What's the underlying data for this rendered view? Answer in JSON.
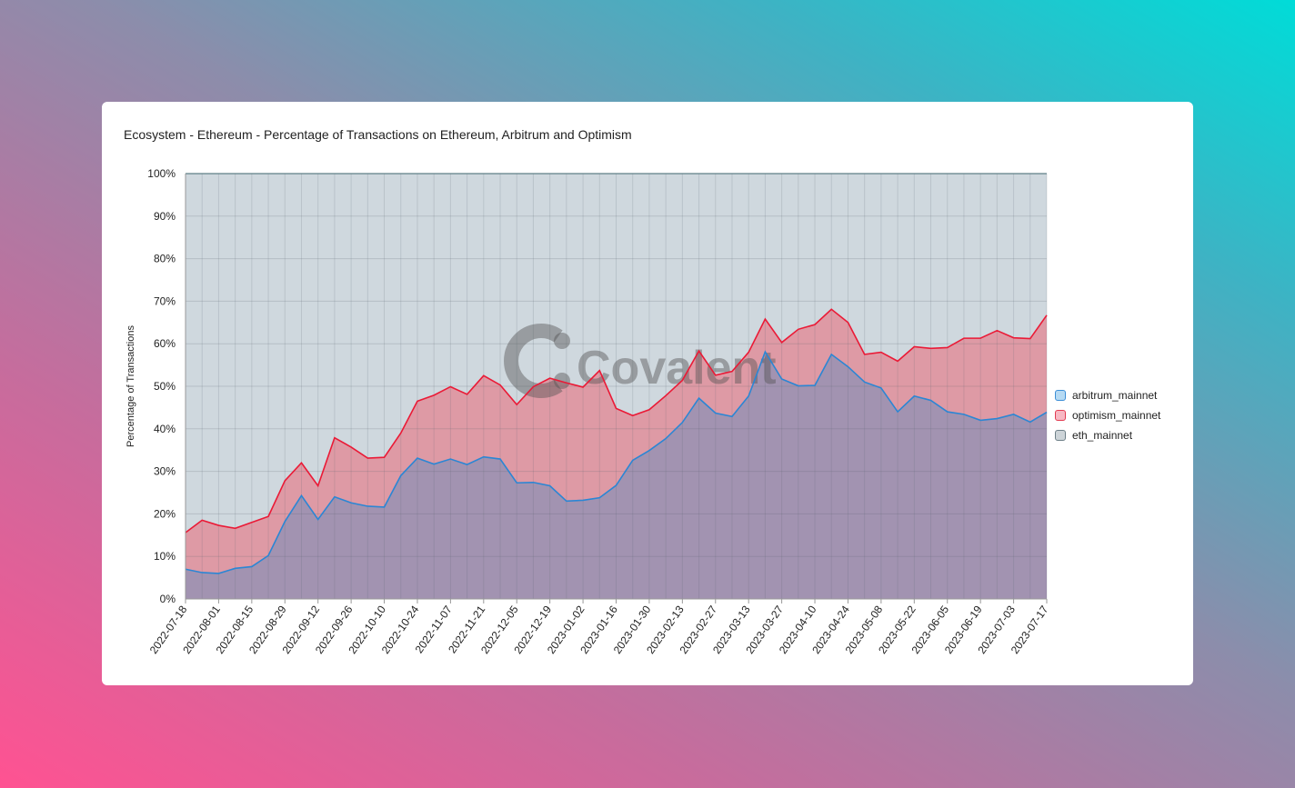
{
  "title": "Ecosystem - Ethereum - Percentage of Transactions on Ethereum, Arbitrum and Optimism",
  "watermark": "Covalent",
  "colors": {
    "arbitrum_line": "#2b86d4",
    "arbitrum_fill": "#a293b1",
    "optimism_line": "#ea1a36",
    "optimism_fill": "#de9aa5",
    "eth_fill": "#cfd8de",
    "eth_line": "#5f7f86"
  },
  "legend": [
    {
      "name": "arbitrum_mainnet",
      "color": "#b6daf3",
      "border": "#3d8fd6"
    },
    {
      "name": "optimism_mainnet",
      "color": "#f7b8c3",
      "border": "#e23b52"
    },
    {
      "name": "eth_mainnet",
      "color": "#cdd4d8",
      "border": "#6e8088"
    }
  ],
  "chart_data": {
    "type": "area",
    "stacked": true,
    "title": "Ecosystem - Ethereum - Percentage of Transactions on Ethereum, Arbitrum and Optimism",
    "ylabel": "Percentage of Transactions",
    "xlabel": "",
    "ylim": [
      0,
      100
    ],
    "y_ticks": [
      "0%",
      "10%",
      "20%",
      "30%",
      "40%",
      "50%",
      "60%",
      "70%",
      "80%",
      "90%",
      "100%"
    ],
    "x_tick_labels": [
      "2022-07-18",
      "2022-08-01",
      "2022-08-15",
      "2022-08-29",
      "2022-09-12",
      "2022-09-26",
      "2022-10-10",
      "2022-10-24",
      "2022-11-07",
      "2022-11-21",
      "2022-12-05",
      "2022-12-19",
      "2023-01-02",
      "2023-01-16",
      "2023-01-30",
      "2023-02-13",
      "2023-02-27",
      "2023-03-13",
      "2023-03-27",
      "2023-04-10",
      "2023-04-24",
      "2023-05-08",
      "2023-05-22",
      "2023-06-05",
      "2023-06-19",
      "2023-07-03",
      "2023-07-17"
    ],
    "x": [
      "2022-07-18",
      "2022-07-25",
      "2022-08-01",
      "2022-08-08",
      "2022-08-15",
      "2022-08-22",
      "2022-08-29",
      "2022-09-05",
      "2022-09-12",
      "2022-09-19",
      "2022-09-26",
      "2022-10-03",
      "2022-10-10",
      "2022-10-17",
      "2022-10-24",
      "2022-10-31",
      "2022-11-07",
      "2022-11-14",
      "2022-11-21",
      "2022-11-28",
      "2022-12-05",
      "2022-12-12",
      "2022-12-19",
      "2022-12-26",
      "2023-01-02",
      "2023-01-09",
      "2023-01-16",
      "2023-01-23",
      "2023-01-30",
      "2023-02-06",
      "2023-02-13",
      "2023-02-20",
      "2023-02-27",
      "2023-03-06",
      "2023-03-13",
      "2023-03-20",
      "2023-03-27",
      "2023-04-03",
      "2023-04-10",
      "2023-04-17",
      "2023-04-24",
      "2023-05-01",
      "2023-05-08",
      "2023-05-15",
      "2023-05-22",
      "2023-05-29",
      "2023-06-05",
      "2023-06-12",
      "2023-06-19",
      "2023-06-26",
      "2023-07-03",
      "2023-07-10",
      "2023-07-17"
    ],
    "series": [
      {
        "name": "arbitrum_mainnet",
        "values": [
          7.0,
          6.2,
          6.0,
          7.2,
          7.6,
          10.2,
          18.2,
          24.3,
          18.7,
          24.0,
          22.6,
          21.8,
          21.6,
          29.0,
          33.1,
          31.7,
          32.9,
          31.6,
          33.4,
          32.9,
          27.3,
          27.4,
          26.6,
          23.0,
          23.2,
          23.8,
          26.7,
          32.6,
          34.9,
          37.7,
          41.5,
          47.2,
          43.7,
          42.9,
          47.7,
          58.1,
          51.7,
          50.1,
          50.2,
          57.5,
          54.6,
          51.0,
          49.6,
          44.0,
          47.7,
          46.7,
          44.0,
          43.4,
          42.0,
          42.4,
          43.4,
          41.6,
          43.9
        ]
      },
      {
        "name": "optimism_mainnet",
        "values": [
          8.6,
          12.3,
          11.3,
          9.4,
          10.4,
          9.2,
          9.6,
          7.7,
          7.9,
          13.9,
          13.1,
          11.3,
          11.7,
          10.0,
          13.4,
          16.2,
          17.0,
          16.5,
          19.1,
          17.4,
          18.4,
          22.5,
          25.3,
          27.8,
          26.6,
          29.9,
          18.1,
          10.5,
          9.6,
          10.1,
          9.9,
          11.1,
          8.9,
          10.6,
          10.3,
          7.7,
          8.6,
          13.3,
          14.3,
          10.6,
          10.4,
          6.5,
          8.4,
          11.9,
          11.6,
          12.2,
          15.1,
          17.9,
          19.3,
          20.7,
          18.0,
          19.6,
          22.8
        ]
      },
      {
        "name": "eth_mainnet",
        "values": [
          84.4,
          81.5,
          82.7,
          83.4,
          82.0,
          80.6,
          72.2,
          68.0,
          73.4,
          62.1,
          64.3,
          66.9,
          66.7,
          61.0,
          53.5,
          52.1,
          50.1,
          51.9,
          47.5,
          49.7,
          54.3,
          50.1,
          48.1,
          49.2,
          50.2,
          46.3,
          55.2,
          56.9,
          55.5,
          52.2,
          48.6,
          41.7,
          47.4,
          46.5,
          42.0,
          34.2,
          39.7,
          36.6,
          35.5,
          31.9,
          35.0,
          42.5,
          42.0,
          44.1,
          40.7,
          41.1,
          40.9,
          38.7,
          38.7,
          36.9,
          38.6,
          38.8,
          33.3
        ]
      }
    ]
  }
}
